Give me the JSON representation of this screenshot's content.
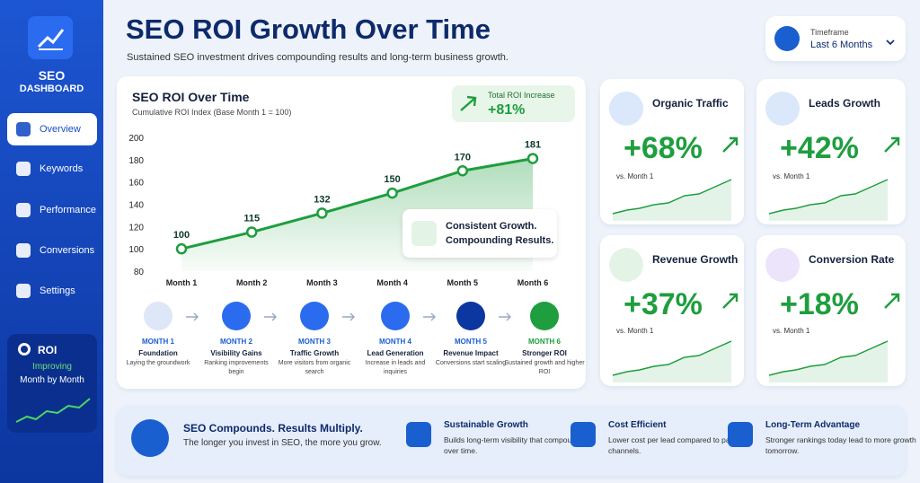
{
  "sidebar": {
    "title": "SEO",
    "subtitle": "DASHBOARD",
    "nav": [
      "Overview",
      "Keywords",
      "Performance",
      "Conversions",
      "Settings"
    ],
    "roi_card": {
      "title": "ROI",
      "status": "Improving",
      "note": "Month by Month"
    }
  },
  "header": {
    "title": "SEO ROI Growth Over Time",
    "subtitle": "Sustained SEO investment drives compounding results and long-term business growth."
  },
  "timeframe": {
    "label": "Timeframe",
    "value": "Last 6 Months"
  },
  "chart_data": {
    "type": "line",
    "title": "SEO ROI Over Time",
    "subtitle": "Cumulative ROI Index (Base Month 1 = 100)",
    "categories": [
      "Month 1",
      "Month 2",
      "Month 3",
      "Month 4",
      "Month 5",
      "Month 6"
    ],
    "values": [
      100,
      115,
      132,
      150,
      170,
      181
    ],
    "color": "#1e9e3e",
    "ylim": [
      80,
      200
    ],
    "yticks": [
      80,
      100,
      120,
      140,
      160,
      180,
      200
    ],
    "grid": false,
    "badge": {
      "label": "Total ROI Increase",
      "value": "+81%"
    },
    "annotation": [
      "Consistent Growth.",
      "Compounding Results."
    ]
  },
  "milestones": [
    {
      "month": "MONTH 1",
      "title": "Foundation",
      "desc": "Laying the groundwork"
    },
    {
      "month": "MONTH 2",
      "title": "Visibility Gains",
      "desc": "Ranking improvements begin"
    },
    {
      "month": "MONTH 3",
      "title": "Traffic Growth",
      "desc": "More visitors from organic search"
    },
    {
      "month": "MONTH 4",
      "title": "Lead Generation",
      "desc": "Increase in leads and inquiries"
    },
    {
      "month": "MONTH 5",
      "title": "Revenue Impact",
      "desc": "Conversions start scaling"
    },
    {
      "month": "MONTH 6",
      "title": "Stronger ROI",
      "desc": "Sustained growth and higher ROI"
    }
  ],
  "kpis": [
    {
      "title": "Organic Traffic",
      "value": "+68%",
      "note": "vs. Month 1"
    },
    {
      "title": "Leads Growth",
      "value": "+42%",
      "note": "vs. Month 1"
    },
    {
      "title": "Revenue Growth",
      "value": "+37%",
      "note": "vs. Month 1"
    },
    {
      "title": "Conversion Rate",
      "value": "+18%",
      "note": "vs. Month 1"
    }
  ],
  "footer": [
    {
      "title": "SEO Compounds. Results Multiply.",
      "desc": "The longer you invest in SEO, the more you grow."
    },
    {
      "title": "Sustainable Growth",
      "desc": "Builds long-term visibility that compounds over time."
    },
    {
      "title": "Cost Efficient",
      "desc": "Lower cost per lead compared to paid channels."
    },
    {
      "title": "Long-Term Advantage",
      "desc": "Stronger rankings today lead to more growth tomorrow."
    }
  ]
}
